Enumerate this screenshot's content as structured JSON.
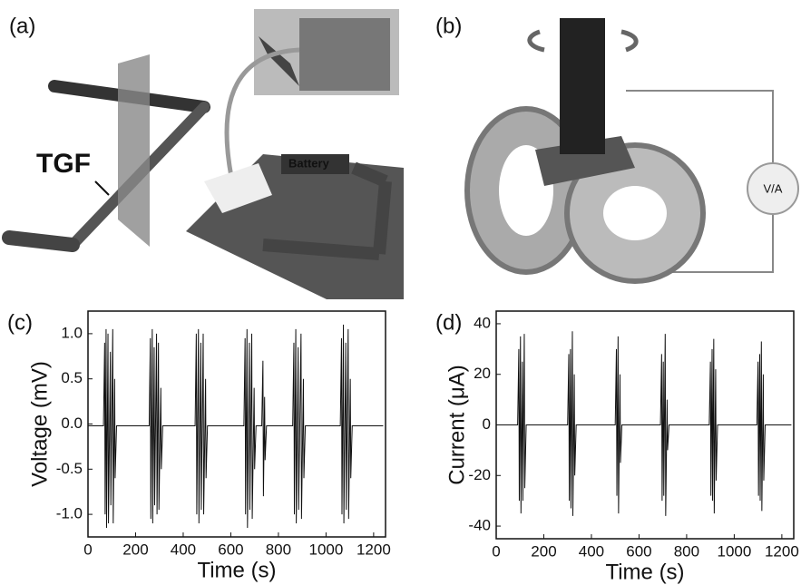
{
  "figure": {
    "panel_a": {
      "label": "(a)",
      "tgf": "TGF",
      "battery": "Battery"
    },
    "panel_b": {
      "label": "(b)",
      "meter": "V/A"
    },
    "panel_c_label": "(c)",
    "panel_d_label": "(d)"
  },
  "chart_data": [
    {
      "type": "line",
      "x_label": "Time (s)",
      "y_label": "Voltage (mV)",
      "color": "#111111",
      "xlim": [
        0,
        1250
      ],
      "xticks": [
        0,
        200,
        400,
        600,
        800,
        1000,
        1200
      ],
      "ylim": [
        -1.25,
        1.25
      ],
      "yticks": [
        {
          "value": -1.0,
          "label": "-1.0"
        },
        -0.5,
        {
          "value": 0.0,
          "label": "0.0"
        },
        0.5,
        {
          "value": 1.0,
          "label": "1.0"
        }
      ],
      "x": [
        0,
        65,
        70,
        72,
        76,
        78,
        84,
        86,
        94,
        96,
        104,
        106,
        112,
        114,
        120,
        257,
        262,
        264,
        270,
        272,
        278,
        280,
        288,
        290,
        296,
        298,
        306,
        308,
        314,
        450,
        455,
        457,
        464,
        466,
        474,
        476,
        484,
        486,
        494,
        496,
        502,
        655,
        660,
        662,
        668,
        670,
        678,
        680,
        688,
        690,
        698,
        700,
        706,
        730,
        735,
        737,
        742,
        744,
        750,
        860,
        865,
        867,
        873,
        875,
        883,
        885,
        895,
        897,
        905,
        907,
        913,
        1060,
        1065,
        1067,
        1073,
        1075,
        1083,
        1085,
        1093,
        1095,
        1102,
        1104,
        1110,
        1240
      ],
      "values": [
        -0.02,
        -0.02,
        0.9,
        -1.0,
        1.05,
        -1.15,
        1.0,
        -1.1,
        0.8,
        -0.9,
        1.05,
        -1.1,
        0.5,
        -0.6,
        -0.02,
        -0.02,
        0.95,
        -1.05,
        1.05,
        -1.1,
        0.85,
        -0.9,
        1.0,
        -1.0,
        0.9,
        -0.95,
        0.4,
        -0.5,
        -0.02,
        -0.02,
        1.0,
        -1.0,
        1.05,
        -1.1,
        0.9,
        -0.95,
        1.0,
        -1.0,
        0.5,
        -0.6,
        -0.02,
        -0.02,
        0.95,
        -1.0,
        1.05,
        -1.15,
        0.9,
        -0.95,
        1.0,
        -1.05,
        0.4,
        -0.5,
        -0.02,
        -0.02,
        0.7,
        -0.8,
        0.3,
        -0.4,
        -0.02,
        -0.02,
        0.9,
        -1.0,
        1.05,
        -1.1,
        0.85,
        -0.95,
        1.0,
        -1.05,
        0.5,
        -0.6,
        -0.02,
        -0.02,
        0.95,
        -1.0,
        1.1,
        -1.1,
        0.9,
        -0.95,
        1.05,
        -1.05,
        0.5,
        -0.6,
        -0.02,
        -0.02
      ]
    },
    {
      "type": "line",
      "x_label": "Time (s)",
      "y_label": "Current (μA)",
      "color": "#111111",
      "xlim": [
        0,
        1250
      ],
      "xticks": [
        0,
        200,
        400,
        600,
        800,
        1000,
        1200
      ],
      "ylim": [
        -45,
        45
      ],
      "yticks": [
        -40,
        -20,
        0,
        20,
        40
      ],
      "x": [
        0,
        90,
        95,
        97,
        102,
        104,
        110,
        112,
        118,
        120,
        126,
        300,
        305,
        307,
        312,
        314,
        320,
        322,
        328,
        330,
        336,
        500,
        505,
        507,
        512,
        514,
        520,
        522,
        528,
        690,
        695,
        697,
        702,
        704,
        710,
        712,
        718,
        720,
        726,
        895,
        900,
        902,
        907,
        909,
        914,
        916,
        922,
        924,
        930,
        1095,
        1100,
        1102,
        1107,
        1109,
        1114,
        1116,
        1122,
        1124,
        1130,
        1240
      ],
      "values": [
        0,
        0,
        30,
        -30,
        35,
        -35,
        25,
        -30,
        36,
        -25,
        0,
        0,
        28,
        -30,
        30,
        -33,
        37,
        -36,
        20,
        -20,
        0,
        0,
        30,
        -28,
        35,
        -35,
        20,
        -15,
        0,
        0,
        28,
        -30,
        25,
        -28,
        36,
        -36,
        10,
        -10,
        0,
        0,
        25,
        -28,
        30,
        -30,
        34,
        -35,
        22,
        -22,
        0,
        0,
        25,
        -28,
        28,
        -30,
        33,
        -34,
        20,
        -22,
        0,
        0
      ]
    }
  ]
}
